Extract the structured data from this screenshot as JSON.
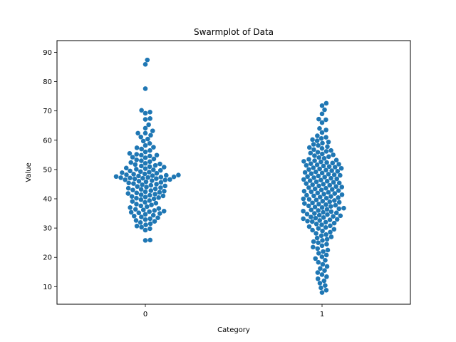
{
  "chart_data": {
    "type": "scatter",
    "subtype": "swarmplot",
    "title": "Swarmplot of Data",
    "xlabel": "Category",
    "ylabel": "Value",
    "categories": [
      "0",
      "1"
    ],
    "ylim": [
      4,
      94
    ],
    "yticks": [
      10,
      20,
      30,
      40,
      50,
      60,
      70,
      80,
      90
    ],
    "grid": false,
    "legend": "none",
    "point_color": "#1f77b4",
    "series": [
      {
        "category": "0",
        "values": [
          87.4,
          85.9,
          77.6,
          70.2,
          69.6,
          69.2,
          67.4,
          67.1,
          65.3,
          64.1,
          63.2,
          62.4,
          62.4,
          61.7,
          61.1,
          60.4,
          59.7,
          58.9,
          58.2,
          57.6,
          57.4,
          57.0,
          56.5,
          56.0,
          55.5,
          55.2,
          54.9,
          54.9,
          54.6,
          54.2,
          54.0,
          53.6,
          53.3,
          53.0,
          52.7,
          52.4,
          52.1,
          51.9,
          51.7,
          51.4,
          51.2,
          51.0,
          50.8,
          50.5,
          50.3,
          50.1,
          49.9,
          49.7,
          49.5,
          49.3,
          49.1,
          48.9,
          48.7,
          48.5,
          48.4,
          48.2,
          48.1,
          48.0,
          47.9,
          47.8,
          47.6,
          47.5,
          47.4,
          47.3,
          47.2,
          47.1,
          47.0,
          46.9,
          46.8,
          46.6,
          46.5,
          46.4,
          46.2,
          46.0,
          45.8,
          45.6,
          45.4,
          45.2,
          45.0,
          44.8,
          44.6,
          44.4,
          44.2,
          44.0,
          43.8,
          43.6,
          43.4,
          43.2,
          43.0,
          42.8,
          42.6,
          42.4,
          42.2,
          42.0,
          41.8,
          41.6,
          41.4,
          41.2,
          41.0,
          40.8,
          40.6,
          40.4,
          40.2,
          40.0,
          39.7,
          39.4,
          39.1,
          38.8,
          38.5,
          38.2,
          37.9,
          37.6,
          37.3,
          37.0,
          36.7,
          36.4,
          36.2,
          36.0,
          35.8,
          35.6,
          35.4,
          35.2,
          35.0,
          34.7,
          34.4,
          34.1,
          33.8,
          33.5,
          33.2,
          32.9,
          32.6,
          32.3,
          31.9,
          31.5,
          31.1,
          30.7,
          30.3,
          29.8,
          29.3,
          25.9,
          25.8
        ]
      },
      {
        "category": "1",
        "values": [
          72.6,
          71.8,
          70.4,
          69.0,
          67.2,
          67.0,
          66.0,
          64.0,
          63.5,
          62.6,
          61.5,
          61.0,
          60.6,
          60.2,
          59.8,
          59.4,
          59.0,
          58.6,
          58.2,
          57.8,
          57.5,
          57.2,
          56.8,
          56.5,
          56.2,
          55.9,
          55.6,
          55.3,
          55.0,
          54.7,
          54.4,
          54.1,
          53.8,
          53.5,
          53.2,
          53.0,
          52.8,
          52.6,
          52.4,
          52.2,
          52.0,
          51.8,
          51.6,
          51.4,
          51.2,
          51.0,
          50.8,
          50.6,
          50.4,
          50.2,
          50.0,
          49.8,
          49.6,
          49.4,
          49.2,
          49.0,
          48.8,
          48.6,
          48.4,
          48.2,
          48.0,
          47.8,
          47.6,
          47.4,
          47.2,
          47.0,
          46.8,
          46.6,
          46.4,
          46.2,
          46.0,
          45.8,
          45.6,
          45.4,
          45.2,
          45.0,
          44.8,
          44.6,
          44.4,
          44.2,
          44.0,
          43.8,
          43.6,
          43.4,
          43.2,
          43.0,
          42.8,
          42.6,
          42.4,
          42.2,
          42.0,
          41.8,
          41.6,
          41.4,
          41.2,
          41.0,
          40.8,
          40.6,
          40.4,
          40.2,
          40.0,
          39.8,
          39.6,
          39.4,
          39.2,
          39.0,
          38.8,
          38.6,
          38.4,
          38.2,
          38.0,
          37.8,
          37.6,
          37.4,
          37.2,
          37.0,
          36.8,
          36.6,
          36.4,
          36.2,
          36.0,
          35.8,
          35.6,
          35.4,
          35.2,
          35.0,
          34.8,
          34.6,
          34.4,
          34.2,
          34.0,
          33.8,
          33.6,
          33.4,
          33.2,
          33.0,
          32.8,
          32.6,
          32.4,
          32.2,
          32.0,
          31.7,
          31.4,
          31.1,
          30.8,
          30.5,
          30.2,
          29.9,
          29.6,
          29.3,
          29.0,
          28.6,
          28.2,
          27.8,
          27.4,
          27.0,
          26.6,
          26.2,
          25.8,
          25.4,
          25.0,
          24.5,
          24.0,
          23.5,
          23.0,
          22.5,
          22.0,
          21.4,
          20.8,
          20.2,
          19.6,
          19.0,
          18.3,
          17.6,
          16.9,
          16.2,
          15.5,
          14.8,
          14.1,
          13.4,
          12.7,
          12.0,
          11.2,
          10.4,
          9.6,
          8.8,
          8.0
        ]
      }
    ]
  }
}
